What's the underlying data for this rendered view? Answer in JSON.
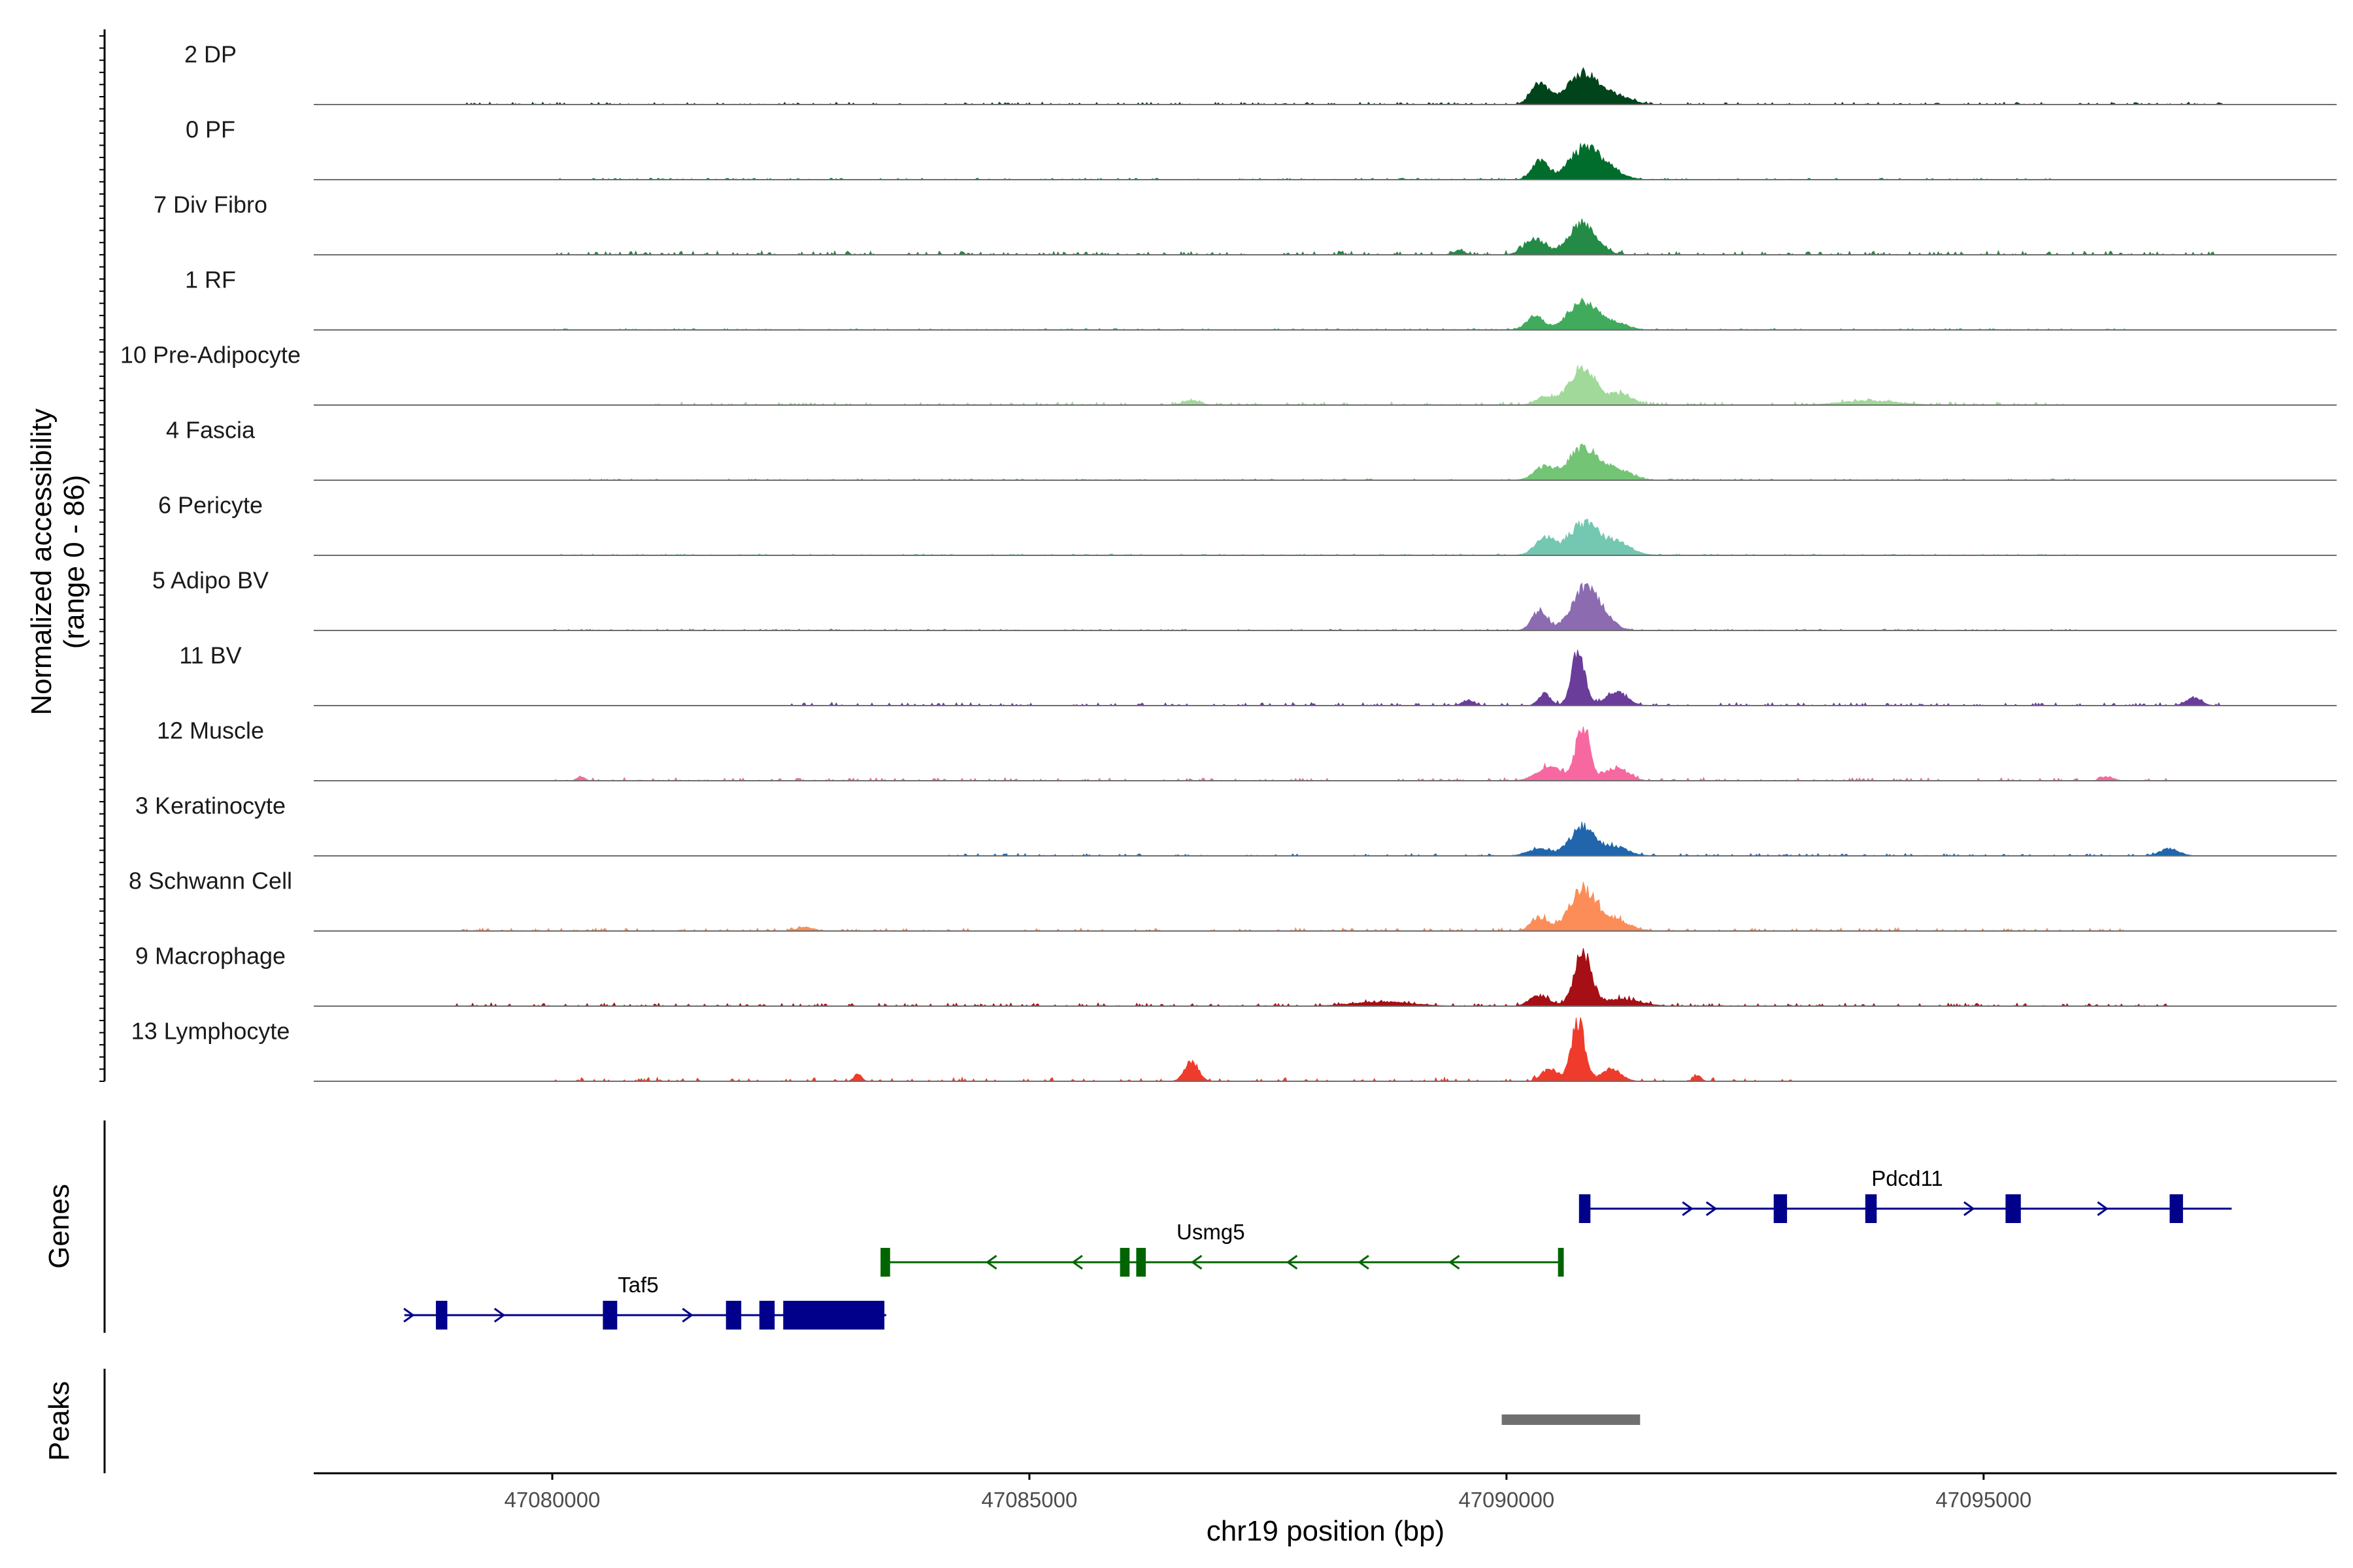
{
  "chart_data": {
    "type": "area",
    "title": "",
    "xlabel": "chr19 position (bp)",
    "ylabel": "Normalized accessibility",
    "ylabel_range": "(range 0 - 86)",
    "xlim": [
      47077500,
      47098700
    ],
    "ylim": [
      0,
      86
    ],
    "x_ticks": [
      47080000,
      47085000,
      47090000,
      47095000
    ],
    "x_tick_labels": [
      "47080000",
      "47085000",
      "47090000",
      "47095000"
    ],
    "panel_titles": {
      "genes": "Genes",
      "peaks": "Peaks"
    },
    "tracks": [
      {
        "name": "2 DP",
        "color": "#00441b",
        "peaks": [
          [
            47090350,
            0.3,
            90
          ],
          [
            47090800,
            0.45,
            160
          ],
          [
            47091150,
            0.12,
            150
          ]
        ],
        "noise": [
          [
            47079000,
            47097500,
            0.03
          ]
        ]
      },
      {
        "name": "0 PF",
        "color": "#006d2c",
        "peaks": [
          [
            47090350,
            0.28,
            80
          ],
          [
            47090800,
            0.42,
            150
          ],
          [
            47091050,
            0.15,
            150
          ]
        ],
        "noise": [
          [
            47080000,
            47096000,
            0.02
          ]
        ]
      },
      {
        "name": "7 Div Fibro",
        "color": "#238b45",
        "peaks": [
          [
            47090300,
            0.22,
            110
          ],
          [
            47090800,
            0.46,
            140
          ],
          [
            47089500,
            0.06,
            60
          ]
        ],
        "noise": [
          [
            47080000,
            47097500,
            0.05
          ]
        ]
      },
      {
        "name": "1 RF",
        "color": "#41ab5d",
        "peaks": [
          [
            47090300,
            0.2,
            90
          ],
          [
            47090800,
            0.4,
            150
          ],
          [
            47091150,
            0.1,
            120
          ]
        ],
        "noise": [
          [
            47080000,
            47096500,
            0.02
          ]
        ]
      },
      {
        "name": "10 Pre-Adipocyte",
        "color": "#a1d99b",
        "peaks": [
          [
            47090800,
            0.52,
            140
          ],
          [
            47091200,
            0.15,
            120
          ],
          [
            47090400,
            0.12,
            90
          ],
          [
            47086700,
            0.06,
            90
          ],
          [
            47093800,
            0.06,
            300
          ]
        ],
        "noise": [
          [
            47081000,
            47096000,
            0.04
          ]
        ]
      },
      {
        "name": "4 Fascia",
        "color": "#74c476",
        "peaks": [
          [
            47090400,
            0.18,
            110
          ],
          [
            47090800,
            0.45,
            150
          ],
          [
            47091150,
            0.15,
            150
          ]
        ],
        "noise": [
          [
            47080000,
            47096000,
            0.02
          ]
        ]
      },
      {
        "name": "6 Pericyte",
        "color": "#74c7b0",
        "peaks": [
          [
            47090400,
            0.25,
            100
          ],
          [
            47090800,
            0.45,
            150
          ],
          [
            47091150,
            0.18,
            150
          ]
        ],
        "noise": [
          [
            47080000,
            47096000,
            0.02
          ]
        ]
      },
      {
        "name": "5 Adipo BV",
        "color": "#8c6bb1",
        "peaks": [
          [
            47090350,
            0.28,
            80
          ],
          [
            47090800,
            0.55,
            130
          ],
          [
            47091000,
            0.2,
            120
          ]
        ],
        "noise": [
          [
            47080000,
            47096000,
            0.02
          ]
        ]
      },
      {
        "name": "11 BV",
        "color": "#6a3d9a",
        "peaks": [
          [
            47090750,
            0.75,
            70
          ],
          [
            47090400,
            0.18,
            60
          ],
          [
            47091150,
            0.2,
            110
          ],
          [
            47089600,
            0.08,
            60
          ],
          [
            47097200,
            0.1,
            80
          ]
        ],
        "noise": [
          [
            47082500,
            47097500,
            0.04
          ]
        ]
      },
      {
        "name": "12 Muscle",
        "color": "#f768a1",
        "peaks": [
          [
            47090800,
            0.8,
            70
          ],
          [
            47090450,
            0.2,
            130
          ],
          [
            47091150,
            0.18,
            120
          ],
          [
            47080300,
            0.06,
            40
          ],
          [
            47096300,
            0.06,
            60
          ]
        ],
        "noise": [
          [
            47080000,
            47097000,
            0.04
          ]
        ]
      },
      {
        "name": "3 Keratinocyte",
        "color": "#2166ac",
        "peaks": [
          [
            47090350,
            0.1,
            120
          ],
          [
            47090800,
            0.42,
            130
          ],
          [
            47091150,
            0.12,
            130
          ],
          [
            47096950,
            0.1,
            100
          ]
        ],
        "noise": [
          [
            47084000,
            47097000,
            0.03
          ]
        ]
      },
      {
        "name": "8 Schwann Cell",
        "color": "#fc8d59",
        "peaks": [
          [
            47090350,
            0.18,
            90
          ],
          [
            47090800,
            0.6,
            140
          ],
          [
            47091150,
            0.15,
            140
          ],
          [
            47082650,
            0.06,
            80
          ]
        ],
        "noise": [
          [
            47079000,
            47096500,
            0.04
          ]
        ]
      },
      {
        "name": "9 Macrophage",
        "color": "#a50f15",
        "peaks": [
          [
            47090800,
            0.75,
            90
          ],
          [
            47090350,
            0.15,
            100
          ],
          [
            47091200,
            0.1,
            200
          ],
          [
            47088700,
            0.06,
            300
          ]
        ],
        "noise": [
          [
            47079000,
            47097000,
            0.04
          ]
        ]
      },
      {
        "name": "13 Lymphocyte",
        "color": "#ef3b2c",
        "peaks": [
          [
            47090750,
            0.85,
            70
          ],
          [
            47086700,
            0.3,
            70
          ],
          [
            47090450,
            0.18,
            80
          ],
          [
            47091100,
            0.18,
            100
          ],
          [
            47083200,
            0.1,
            40
          ],
          [
            47092000,
            0.08,
            40
          ]
        ],
        "noise": [
          [
            47080000,
            47093000,
            0.05
          ]
        ]
      }
    ],
    "genes": [
      {
        "name": "Pdcd11",
        "strand": "+",
        "row": 0,
        "color": "#00008b",
        "start": 47090800,
        "end": 47097600,
        "label_x": 47094200,
        "exons": [
          [
            47090760,
            47090880
          ],
          [
            47092800,
            47092940
          ],
          [
            47093760,
            47093880
          ],
          [
            47095230,
            47095390
          ],
          [
            47096950,
            47097090
          ]
        ],
        "arrows": [
          47091900,
          47092150,
          47094850,
          47096250
        ]
      },
      {
        "name": "Usmg5",
        "strand": "-",
        "row": 1,
        "color": "#006400",
        "start": 47083500,
        "end": 47090600,
        "label_x": 47086900,
        "exons": [
          [
            47083440,
            47083540
          ],
          [
            47085950,
            47086050
          ],
          [
            47086120,
            47086220
          ],
          [
            47090540,
            47090600
          ]
        ],
        "arrows": [
          47084600,
          47085500,
          47086750,
          47087750,
          47088500,
          47089450
        ]
      },
      {
        "name": "Taf5",
        "strand": "+",
        "row": 2,
        "color": "#00008b",
        "start": 47078450,
        "end": 47083500,
        "label_x": 47080900,
        "exons": [
          [
            47078780,
            47078900
          ],
          [
            47080530,
            47080680
          ],
          [
            47081820,
            47081980
          ],
          [
            47082170,
            47082330
          ],
          [
            47082420,
            47083480
          ]
        ],
        "arrows": [
          47078500,
          47079450,
          47081420
        ]
      }
    ],
    "peaks": [
      [
        47089950,
        47091400
      ]
    ],
    "peaks_color": "#707070"
  }
}
